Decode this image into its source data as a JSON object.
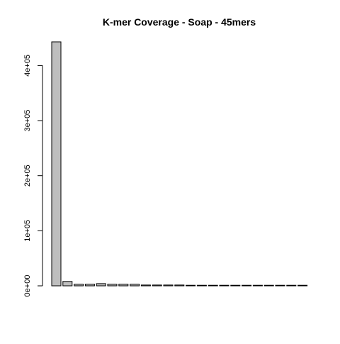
{
  "chart_data": {
    "type": "bar",
    "title": "K-mer Coverage - Soap - 45mers",
    "xlabel": "",
    "ylabel": "",
    "ylim": [
      0,
      450000
    ],
    "yticks": [
      0,
      100000,
      200000,
      300000,
      400000
    ],
    "ytick_labels": [
      "0e+00",
      "1e+05",
      "2e+05",
      "3e+05",
      "4e+05"
    ],
    "grid": false,
    "legend": "none",
    "bar_fill": "#bebebe",
    "bar_stroke": "#000000",
    "values": [
      443000,
      8000,
      3000,
      3000,
      4000,
      3000,
      3000,
      3000,
      1500,
      1500,
      1500,
      1500,
      700,
      500,
      400,
      400,
      400,
      300,
      300,
      300,
      300,
      200,
      200
    ]
  }
}
